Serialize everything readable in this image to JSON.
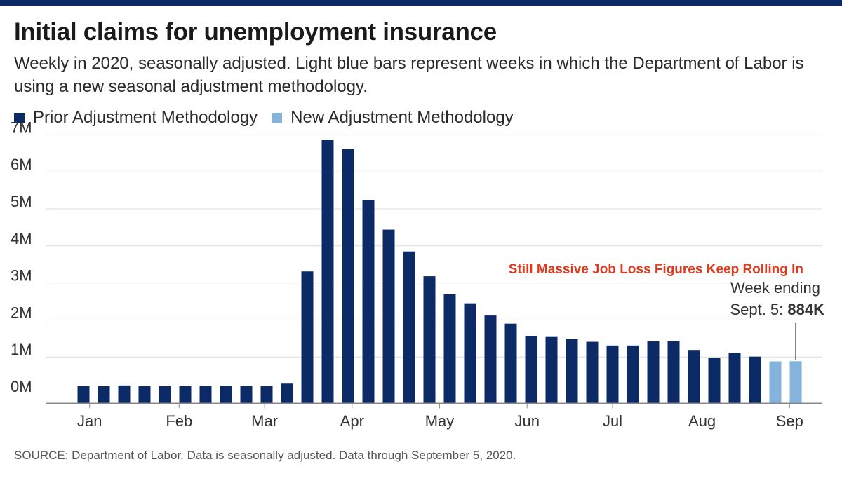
{
  "title": "Initial claims for unemployment insurance",
  "subtitle": "Weekly in 2020, seasonally adjusted. Light blue bars represent weeks in which the Department of Labor is using a new seasonal adjustment methodology.",
  "legend": [
    {
      "label": "Prior Adjustment Methodology",
      "color": "#0b2a66"
    },
    {
      "label": "New Adjustment Methodology",
      "color": "#85b3db"
    }
  ],
  "source": "SOURCE: Department of Labor. Data is seasonally adjusted. Data through September 5, 2020.",
  "chart_data": {
    "type": "bar",
    "ylim": [
      -0.25,
      7
    ],
    "yticks": [
      {
        "value": 0,
        "label": "0M"
      },
      {
        "value": 1,
        "label": "1M"
      },
      {
        "value": 2,
        "label": "2M"
      },
      {
        "value": 3,
        "label": "3M"
      },
      {
        "value": 4,
        "label": "4M"
      },
      {
        "value": 5,
        "label": "5M"
      },
      {
        "value": 6,
        "label": "6M"
      },
      {
        "value": 7,
        "label": "7M"
      }
    ],
    "month_labels": [
      {
        "label": "Jan",
        "week": 0.3
      },
      {
        "label": "Feb",
        "week": 4.7
      },
      {
        "label": "Mar",
        "week": 8.9
      },
      {
        "label": "Apr",
        "week": 13.2
      },
      {
        "label": "May",
        "week": 17.5
      },
      {
        "label": "Jun",
        "week": 21.8
      },
      {
        "label": "Jul",
        "week": 26.0
      },
      {
        "label": "Aug",
        "week": 30.4
      },
      {
        "label": "Sep",
        "week": 34.7
      }
    ],
    "series": [
      {
        "name": "Prior Adjustment Methodology",
        "color": "#0b2a66",
        "values": [
          0.21,
          0.21,
          0.23,
          0.21,
          0.21,
          0.21,
          0.22,
          0.22,
          0.22,
          0.21,
          0.28,
          3.31,
          6.87,
          6.62,
          5.24,
          4.44,
          3.85,
          3.18,
          2.69,
          2.45,
          2.12,
          1.9,
          1.57,
          1.54,
          1.48,
          1.41,
          1.31,
          1.31,
          1.42,
          1.43,
          1.19,
          0.98,
          1.11,
          1.01,
          null,
          null
        ]
      },
      {
        "name": "New Adjustment Methodology",
        "color": "#85b3db",
        "values": [
          null,
          null,
          null,
          null,
          null,
          null,
          null,
          null,
          null,
          null,
          null,
          null,
          null,
          null,
          null,
          null,
          null,
          null,
          null,
          null,
          null,
          null,
          null,
          null,
          null,
          null,
          null,
          null,
          null,
          null,
          null,
          null,
          null,
          null,
          0.88,
          0.884
        ]
      }
    ],
    "annotations": {
      "headline": "Still Massive Job Loss Figures Keep Rolling In",
      "headline_color": "#e03a1e",
      "callout_line1": "Week ending",
      "callout_line2_prefix": "Sept. 5: ",
      "callout_value": "884K",
      "callout_week": 35
    }
  }
}
